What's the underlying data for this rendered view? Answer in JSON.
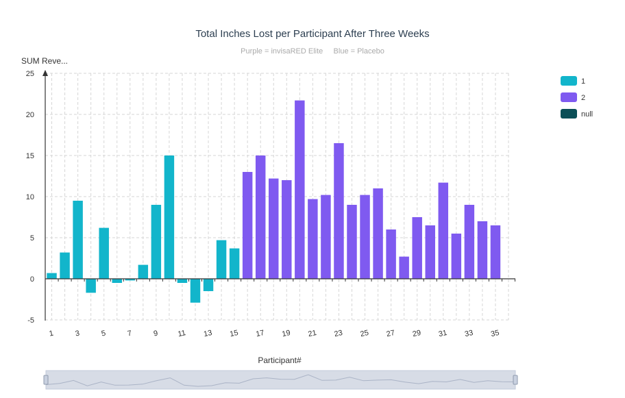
{
  "chart_data": {
    "type": "bar",
    "title": "Total Inches Lost per Participant After Three Weeks",
    "subtitle": "Purple = invisaRED Elite     Blue = Placebo",
    "xlabel": "Participant#",
    "ylabel": "SUM Reve...",
    "ylim": [
      -5,
      25
    ],
    "yticks": [
      -5,
      0,
      5,
      10,
      15,
      20,
      25
    ],
    "xtick_labels": [
      "1",
      "3",
      "5",
      "7",
      "9",
      "11",
      "13",
      "15",
      "17",
      "19",
      "21",
      "23",
      "25",
      "27",
      "29",
      "31",
      "33",
      "35"
    ],
    "grid": true,
    "legend_position": "top-right",
    "legend": [
      {
        "name": "1",
        "color": "#12b5cb"
      },
      {
        "name": "2",
        "color": "#7f5af0"
      },
      {
        "name": "null",
        "color": "#0b4f57"
      }
    ],
    "categories": [
      "1",
      "2",
      "3",
      "4",
      "5",
      "6",
      "7",
      "8",
      "9",
      "10",
      "11",
      "12",
      "13",
      "14",
      "15",
      "16",
      "17",
      "18",
      "19",
      "20",
      "21",
      "22",
      "23",
      "24",
      "25",
      "26",
      "27",
      "28",
      "29",
      "30",
      "31",
      "32",
      "33",
      "34",
      "35"
    ],
    "values": [
      0.7,
      3.2,
      9.5,
      -1.7,
      6.2,
      -0.5,
      -0.2,
      1.7,
      9.0,
      15.0,
      -0.5,
      -2.9,
      -1.5,
      4.7,
      3.7,
      13.0,
      15.0,
      12.2,
      12.0,
      21.7,
      9.7,
      10.2,
      16.5,
      9.0,
      10.2,
      11.0,
      6.0,
      2.7,
      7.5,
      6.5,
      11.7,
      5.5,
      9.0,
      7.0,
      6.5
    ],
    "groups": [
      1,
      1,
      1,
      1,
      1,
      1,
      1,
      1,
      1,
      1,
      1,
      1,
      1,
      1,
      1,
      2,
      2,
      2,
      2,
      2,
      2,
      2,
      2,
      2,
      2,
      2,
      2,
      2,
      2,
      2,
      2,
      2,
      2,
      2,
      2
    ]
  },
  "colors": {
    "group1": "#12b5cb",
    "group2": "#7f5af0",
    "null": "#0b4f57",
    "slider_fill": "#d7dce6",
    "slider_border": "#c2cad9"
  }
}
